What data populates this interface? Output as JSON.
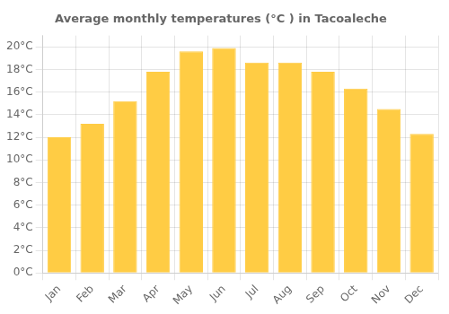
{
  "chart_data": {
    "type": "bar",
    "title": "Average monthly temperatures (°C ) in Tacoaleche",
    "categories": [
      "Jan",
      "Feb",
      "Mar",
      "Apr",
      "May",
      "Jun",
      "Jul",
      "Aug",
      "Sep",
      "Oct",
      "Nov",
      "Dec"
    ],
    "values": [
      12.0,
      13.2,
      15.2,
      17.8,
      19.6,
      19.9,
      18.6,
      18.6,
      17.8,
      16.3,
      14.5,
      12.3
    ],
    "color": "#FFCC44",
    "ylim": [
      0,
      21
    ],
    "yticks": [
      {
        "value": 0,
        "label": "0°C"
      },
      {
        "value": 2,
        "label": "2°C"
      },
      {
        "value": 4,
        "label": "4°C"
      },
      {
        "value": 6,
        "label": "6°C"
      },
      {
        "value": 8,
        "label": "8°C"
      },
      {
        "value": 10,
        "label": "10°C"
      },
      {
        "value": 12,
        "label": "12°C"
      },
      {
        "value": 14,
        "label": "14°C"
      },
      {
        "value": 16,
        "label": "16°C"
      },
      {
        "value": 18,
        "label": "18°C"
      },
      {
        "value": 20,
        "label": "20°C"
      }
    ],
    "grid": true
  }
}
